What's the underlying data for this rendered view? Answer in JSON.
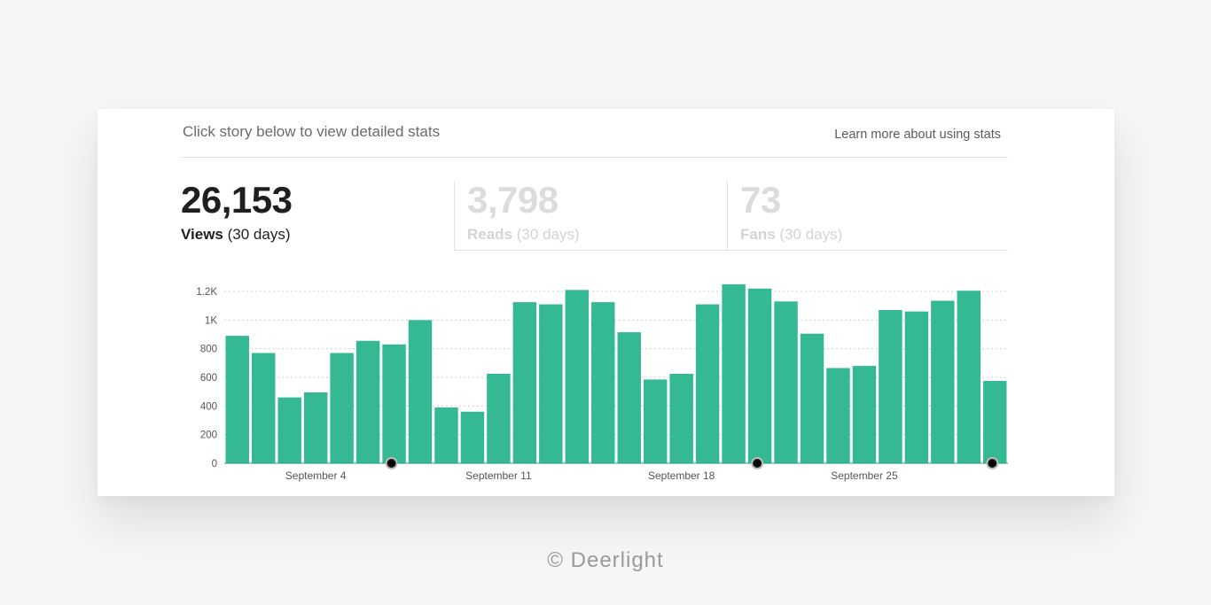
{
  "header": {
    "hint": "Click story below to view detailed stats",
    "learn_link": "Learn more about using stats"
  },
  "metrics": [
    {
      "value": "26,153",
      "label": "Views",
      "period": "(30 days)",
      "active": true
    },
    {
      "value": "3,798",
      "label": "Reads",
      "period": "(30 days)",
      "active": false
    },
    {
      "value": "73",
      "label": "Fans",
      "period": "(30 days)",
      "active": false
    }
  ],
  "chart_data": {
    "type": "bar",
    "ylim": [
      0,
      1200
    ],
    "y_ticks": [
      0,
      200,
      400,
      600,
      800,
      1000,
      1200
    ],
    "y_tick_labels": [
      "0",
      "200",
      "400",
      "600",
      "800",
      "1K",
      "1.2K"
    ],
    "values": [
      890,
      770,
      460,
      495,
      770,
      855,
      830,
      1000,
      390,
      360,
      625,
      1125,
      1110,
      1210,
      1125,
      915,
      585,
      625,
      1110,
      1250,
      1220,
      1130,
      905,
      665,
      680,
      1070,
      1060,
      1135,
      1205,
      575
    ],
    "x_labels": [
      {
        "index": 3.5,
        "text": "September 4"
      },
      {
        "index": 10.5,
        "text": "September 11"
      },
      {
        "index": 17.5,
        "text": "September 18"
      },
      {
        "index": 24.5,
        "text": "September 25"
      }
    ],
    "markers": [
      6.4,
      20.4,
      29.4
    ],
    "grid": true,
    "colors": {
      "bar": "#35b994",
      "grid": "#cfcfcf",
      "marker": "#111111"
    }
  },
  "footer": {
    "copyright": "© Deerlight"
  }
}
